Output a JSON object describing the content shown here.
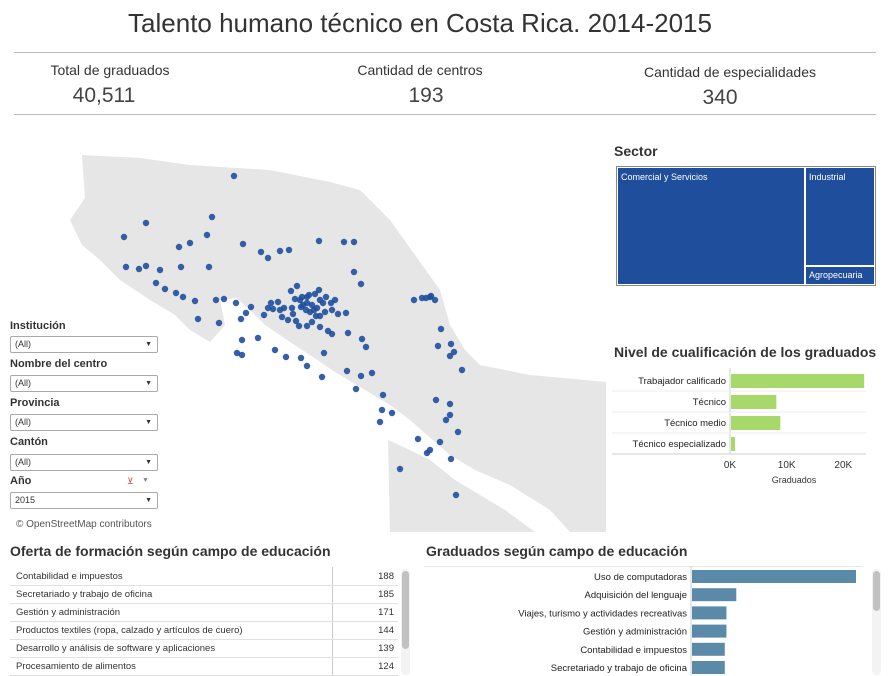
{
  "title": "Talento humano técnico en Costa Rica. 2014-2015",
  "kpis": [
    {
      "label": "Total de graduados",
      "value": "40,511"
    },
    {
      "label": "Cantidad de centros",
      "value": "193"
    },
    {
      "label": "Cantidad de especialidades",
      "value": "340"
    }
  ],
  "filters": [
    {
      "label": "Institución",
      "value": "(All)"
    },
    {
      "label": "Nombre del centro",
      "value": "(All)"
    },
    {
      "label": "Provincia",
      "value": "(All)"
    },
    {
      "label": "Cantón",
      "value": "(All)"
    },
    {
      "label": "Año",
      "value": "2015"
    }
  ],
  "map": {
    "attribution": "© OpenStreetMap contributors",
    "point_color": "#1f4e9c",
    "land_color": "#e6e6e6"
  },
  "sector": {
    "title": "Sector",
    "color": "#1f4e9c",
    "items": [
      "Comercial y Servicios",
      "Industrial",
      "Agropecuaria"
    ]
  },
  "qualification": {
    "title": "Nivel de cualificación de los graduados",
    "color": "#a6d96a"
  },
  "offer": {
    "title": "Oferta de formación según campo de educación",
    "rows": [
      {
        "name": "Contabilidad e impuestos",
        "value": "188"
      },
      {
        "name": "Secretariado y trabajo de oficina",
        "value": "185"
      },
      {
        "name": "Gestión y administración",
        "value": "171"
      },
      {
        "name": "Productos textiles (ropa, calzado y artículos de cuero)",
        "value": "144"
      },
      {
        "name": "Desarrollo y análisis de software y aplicaciones",
        "value": "139"
      },
      {
        "name": "Procesamiento de alimentos",
        "value": "124"
      }
    ]
  },
  "graduates_field": {
    "title": "Graduados según campo de educación",
    "color": "#5b8aa8"
  },
  "chart_data": [
    {
      "type": "bar",
      "orientation": "horizontal",
      "title": "Nivel de cualificación de los graduados",
      "categories": [
        "Trabajador calificado",
        "Técnico",
        "Técnico medio",
        "Técnico especializado"
      ],
      "values": [
        23500,
        8000,
        8700,
        700
      ],
      "xlabel": "Graduados",
      "xlim": [
        0,
        24000
      ],
      "xticks": [
        "0K",
        "10K",
        "20K"
      ]
    },
    {
      "type": "bar",
      "orientation": "horizontal",
      "title": "Graduados según campo de educación",
      "categories": [
        "Uso de computadoras",
        "Adquisición del lenguaje",
        "Viajes, turismo y actividades recreativas",
        "Gestión y administración",
        "Contabilidad e impuestos",
        "Secretariado y trabajo de oficina"
      ],
      "values": [
        100,
        27,
        21,
        21,
        20,
        20
      ]
    }
  ]
}
